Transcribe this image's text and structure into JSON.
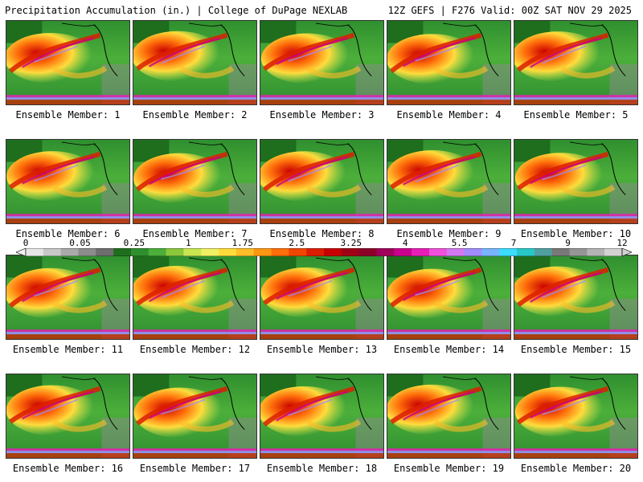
{
  "header": {
    "left": "Precipitation Accumulation (in.) | College of DuPage NEXLAB",
    "right": "12Z GEFS | F276 Valid: 00Z SAT NOV 29 2025"
  },
  "panels": [
    {
      "label": "Ensemble Member: 1"
    },
    {
      "label": "Ensemble Member: 2"
    },
    {
      "label": "Ensemble Member: 3"
    },
    {
      "label": "Ensemble Member: 4"
    },
    {
      "label": "Ensemble Member: 5"
    },
    {
      "label": "Ensemble Member: 6"
    },
    {
      "label": "Ensemble Member: 7"
    },
    {
      "label": "Ensemble Member: 8"
    },
    {
      "label": "Ensemble Member: 9"
    },
    {
      "label": "Ensemble Member: 10"
    },
    {
      "label": "Ensemble Member: 11"
    },
    {
      "label": "Ensemble Member: 12"
    },
    {
      "label": "Ensemble Member: 13"
    },
    {
      "label": "Ensemble Member: 14"
    },
    {
      "label": "Ensemble Member: 15"
    },
    {
      "label": "Ensemble Member: 16"
    },
    {
      "label": "Ensemble Member: 17"
    },
    {
      "label": "Ensemble Member: 18"
    },
    {
      "label": "Ensemble Member: 19"
    },
    {
      "label": "Ensemble Member: 20"
    }
  ],
  "colorbar": {
    "ticks": [
      "0",
      "0.05",
      "0.25",
      "1",
      "1.75",
      "2.5",
      "3.25",
      "4",
      "5.5",
      "7",
      "9",
      "12"
    ],
    "colors": [
      "#e6e6e6",
      "#c8c8c8",
      "#aaaaaa",
      "#8c8c8c",
      "#6e6e6e",
      "#1e6e1e",
      "#2f8f2f",
      "#4caf3a",
      "#8cc83c",
      "#c8e650",
      "#f0f064",
      "#ffdc3c",
      "#ffbe28",
      "#ff9614",
      "#ff6e0a",
      "#f04600",
      "#dc1e00",
      "#c80000",
      "#a00014",
      "#8c0028",
      "#a0005a",
      "#c8008c",
      "#e61eb4",
      "#f050dc",
      "#d278f0",
      "#a08cff",
      "#78b4ff",
      "#3cdcff",
      "#28c8c8",
      "#50a0a0",
      "#787878",
      "#969696",
      "#b4b4b4",
      "#d2d2d2"
    ]
  }
}
